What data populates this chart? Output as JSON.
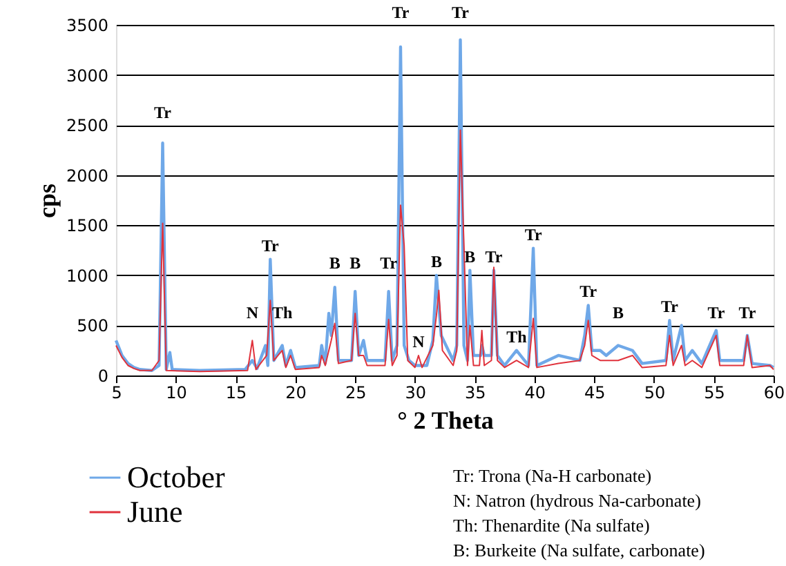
{
  "chart_data": {
    "type": "line",
    "xlabel": "° 2 Theta",
    "ylabel": "cps",
    "xlim": [
      5,
      60
    ],
    "xticks": [
      5,
      10,
      15,
      20,
      25,
      30,
      35,
      40,
      45,
      50,
      55,
      60
    ],
    "ylim": [
      0,
      3500
    ],
    "yticks": [
      0,
      500,
      1000,
      1500,
      2000,
      2500,
      3000,
      3500
    ],
    "grid": "y",
    "legend": "bottom left",
    "marker": "none",
    "line_style": "solid",
    "series": [
      {
        "name": "October",
        "color": "#6fa8e8",
        "x": [
          5,
          5.5,
          6,
          6.5,
          7,
          8,
          8.6,
          8.9,
          9.2,
          9.5,
          9.7,
          12,
          15.8,
          16.4,
          16.8,
          17.5,
          17.7,
          17.9,
          18.2,
          18.9,
          19.2,
          19.6,
          20,
          22,
          22.2,
          22.5,
          22.8,
          23.0,
          23.3,
          23.6,
          24.7,
          25.0,
          25.3,
          25.7,
          26,
          27.5,
          27.8,
          28.1,
          28.5,
          28.8,
          29.1,
          29.5,
          30,
          31,
          31.5,
          31.8,
          32.2,
          33.2,
          33.5,
          33.8,
          34.1,
          34.4,
          34.6,
          34.9,
          35.5,
          35.6,
          35.8,
          36.4,
          36.6,
          36.9,
          37.5,
          38.5,
          39.5,
          39.9,
          40.2,
          42.0,
          43.8,
          44.2,
          44.5,
          44.8,
          45.5,
          46,
          47,
          48.2,
          49,
          51,
          51.3,
          51.6,
          52.3,
          52.6,
          53.2,
          54,
          55.2,
          55.5,
          57.5,
          57.8,
          58.2,
          59.7,
          60
        ],
        "values": [
          350,
          200,
          120,
          80,
          60,
          50,
          100,
          2320,
          60,
          230,
          60,
          50,
          60,
          150,
          70,
          300,
          100,
          1160,
          150,
          300,
          100,
          250,
          80,
          100,
          300,
          120,
          620,
          400,
          880,
          150,
          150,
          840,
          200,
          350,
          150,
          150,
          840,
          150,
          300,
          3280,
          300,
          150,
          100,
          100,
          350,
          1000,
          400,
          150,
          300,
          3350,
          300,
          150,
          1050,
          200,
          200,
          300,
          200,
          200,
          1050,
          200,
          100,
          250,
          100,
          1270,
          100,
          200,
          150,
          400,
          700,
          250,
          250,
          200,
          300,
          250,
          120,
          150,
          550,
          150,
          500,
          150,
          250,
          120,
          450,
          150,
          150,
          400,
          120,
          100,
          80
        ]
      },
      {
        "name": "June",
        "color": "#e0323c",
        "x": [
          5,
          5.5,
          6,
          6.5,
          7,
          8,
          8.6,
          8.9,
          9.2,
          12,
          16,
          16.4,
          16.7,
          17.6,
          17.9,
          18.2,
          18.9,
          19.2,
          19.6,
          20,
          22,
          22.2,
          22.5,
          23.0,
          23.3,
          23.6,
          24.7,
          25.0,
          25.3,
          25.7,
          26,
          27.5,
          27.8,
          28.1,
          28.5,
          28.8,
          29.1,
          29.4,
          30,
          30.3,
          30.6,
          31.5,
          31.8,
          32.0,
          32.3,
          33.2,
          33.5,
          33.8,
          34.1,
          34.4,
          34.6,
          34.9,
          35.4,
          35.6,
          35.8,
          36.4,
          36.6,
          36.9,
          37.5,
          38.5,
          39.5,
          39.9,
          40.2,
          42,
          43.8,
          44.2,
          44.5,
          44.8,
          45.5,
          47,
          48.2,
          49,
          51,
          51.3,
          51.6,
          52.3,
          52.6,
          53.2,
          54,
          55.2,
          55.5,
          57.5,
          57.8,
          58.2,
          59.7,
          60
        ],
        "values": [
          300,
          180,
          100,
          70,
          50,
          50,
          150,
          1520,
          50,
          40,
          50,
          350,
          60,
          200,
          750,
          150,
          250,
          80,
          200,
          60,
          80,
          200,
          100,
          350,
          520,
          120,
          150,
          620,
          200,
          200,
          100,
          100,
          560,
          100,
          200,
          1700,
          1300,
          150,
          80,
          200,
          80,
          300,
          600,
          850,
          250,
          100,
          250,
          2450,
          1300,
          100,
          500,
          100,
          100,
          450,
          100,
          150,
          1080,
          150,
          80,
          150,
          80,
          570,
          80,
          120,
          150,
          300,
          550,
          200,
          150,
          150,
          200,
          80,
          100,
          400,
          100,
          300,
          100,
          150,
          80,
          400,
          100,
          100,
          400,
          80,
          100,
          60
        ]
      }
    ],
    "annotations": [
      {
        "text": "Tr",
        "x": 8.9,
        "y": 2320
      },
      {
        "text": "N",
        "x": 16.4,
        "y": 350
      },
      {
        "text": "Tr",
        "x": 17.9,
        "y": 1160
      },
      {
        "text": "Th",
        "x": 18.9,
        "y": 300
      },
      {
        "text": "B",
        "x": 23.3,
        "y": 880
      },
      {
        "text": "B",
        "x": 25.0,
        "y": 840
      },
      {
        "text": "Tr",
        "x": 27.8,
        "y": 840
      },
      {
        "text": "Tr",
        "x": 28.8,
        "y": 3280
      },
      {
        "text": "N",
        "x": 30.3,
        "y": 200
      },
      {
        "text": "B",
        "x": 31.8,
        "y": 1000
      },
      {
        "text": "Tr",
        "x": 33.8,
        "y": 3350
      },
      {
        "text": "B",
        "x": 34.6,
        "y": 1050
      },
      {
        "text": "Tr",
        "x": 36.6,
        "y": 1050
      },
      {
        "text": "Th",
        "x": 38.5,
        "y": 250
      },
      {
        "text": "Tr",
        "x": 39.9,
        "y": 1270
      },
      {
        "text": "Tr",
        "x": 44.5,
        "y": 700
      },
      {
        "text": "B",
        "x": 47,
        "y": 300
      },
      {
        "text": "Tr",
        "x": 51.3,
        "y": 550
      },
      {
        "text": "Tr",
        "x": 55.2,
        "y": 450
      },
      {
        "text": "Tr",
        "x": 57.8,
        "y": 400
      },
      "Tr: Trona (Na-H carbonate)",
      "N: Natron (hydrous Na-carbonate)",
      "Th: Thenardite (Na sulfate)",
      "B: Burkeite (Na sulfate, carbonate)"
    ]
  }
}
